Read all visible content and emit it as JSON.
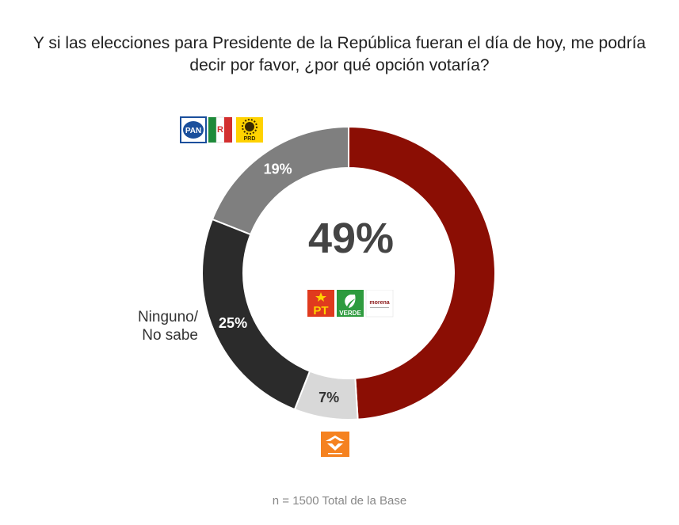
{
  "title": "Y si las elecciones para Presidente de la República fueran el día de hoy, me podría decir por favor, ¿por qué opción votaría?",
  "footnote": "n = 1500 Total de la Base",
  "center_label": "49%",
  "side_label_line1": "Ninguno/",
  "side_label_line2": "No sabe",
  "logos": {
    "pan": "PAN",
    "prd": "PRD",
    "pt": "PT",
    "verde": "VERDE",
    "morena": "morena"
  },
  "chart_data": {
    "type": "pie",
    "donut": true,
    "title": "Y si las elecciones para Presidente de la República fueran el día de hoy, me podría decir por favor, ¿por qué opción votaría?",
    "slices": [
      {
        "name": "PT / VERDE / morena",
        "value": 49,
        "label": "",
        "color": "#8b0e04",
        "text_color": "#ffffff"
      },
      {
        "name": "Movimiento Ciudadano",
        "value": 7,
        "label": "7%",
        "color": "#d8d8d8",
        "text_color": "#333333"
      },
      {
        "name": "Ninguno/ No sabe",
        "value": 25,
        "label": "25%",
        "color": "#2b2b2b",
        "text_color": "#ffffff"
      },
      {
        "name": "PAN / PRI / PRD",
        "value": 19,
        "label": "19%",
        "color": "#7f7f7f",
        "text_color": "#ffffff"
      }
    ],
    "legend": "none"
  }
}
